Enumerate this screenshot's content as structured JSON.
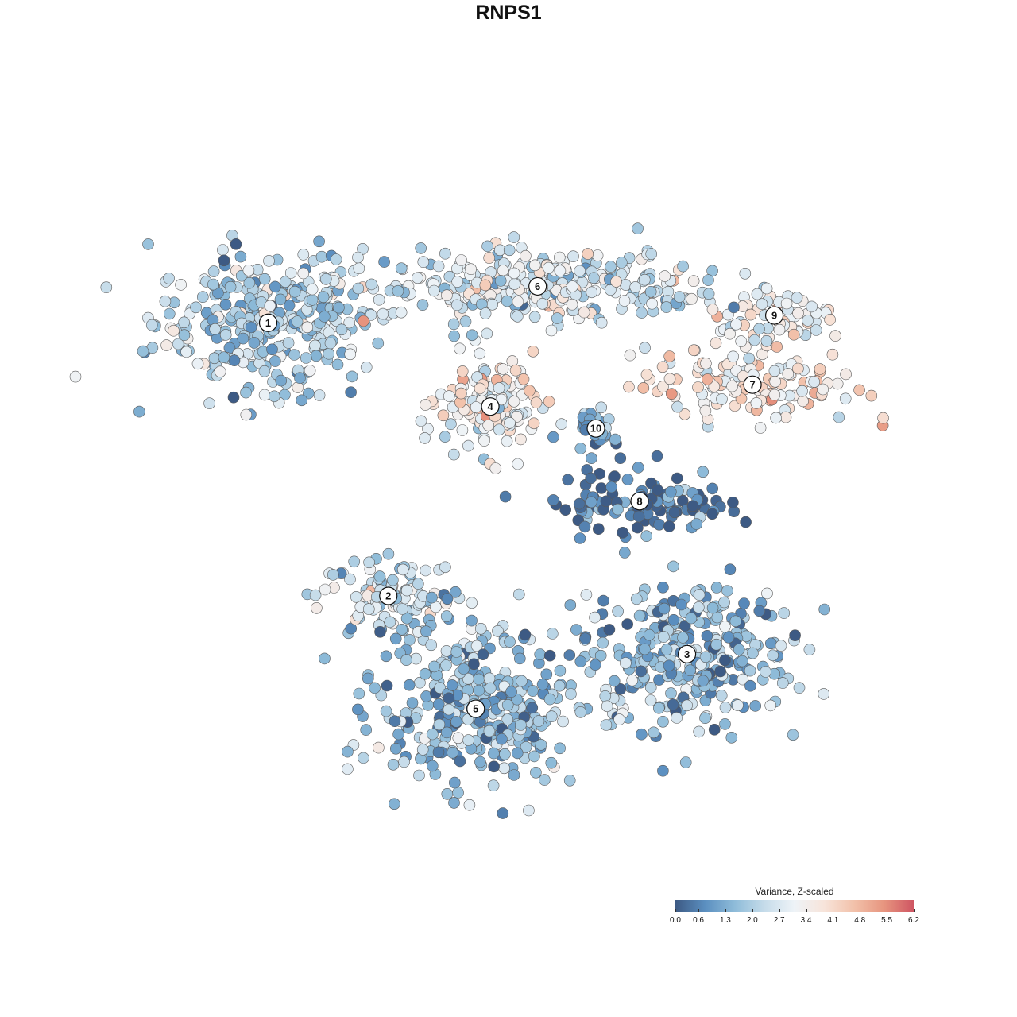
{
  "chart_data": {
    "type": "scatter",
    "title": "RNPS1",
    "legend": {
      "title": "Variance, Z-scaled",
      "ticks": [
        0.0,
        0.6,
        1.3,
        2.0,
        2.7,
        3.4,
        4.1,
        4.8,
        5.5,
        6.2
      ],
      "tick_labels": [
        "0.0",
        "0.6",
        "1.3",
        "2.0",
        "2.7",
        "3.4",
        "4.1",
        "4.8",
        "5.5",
        "6.2"
      ],
      "range": [
        0,
        6.2
      ],
      "placement": "bottom-right",
      "colors": [
        "#3d5a84",
        "#5b8fc0",
        "#8fbcd9",
        "#c6dcea",
        "#eef3f7",
        "#f7e4da",
        "#f2c1aa",
        "#e7957f",
        "#cf5562"
      ]
    },
    "axes_visible": false,
    "grid": false,
    "clusters": [
      {
        "label": "1",
        "x": -6.6,
        "y": 5.1,
        "spread_x": 2.6,
        "spread_y": 1.6,
        "mean_value": 2.0
      },
      {
        "label": "2",
        "x": -3.3,
        "y": -2.4,
        "spread_x": 1.6,
        "spread_y": 0.9,
        "mean_value": 2.3
      },
      {
        "label": "3",
        "x": 4.9,
        "y": -4.0,
        "spread_x": 2.4,
        "spread_y": 1.7,
        "mean_value": 1.4
      },
      {
        "label": "4",
        "x": -0.5,
        "y": 2.8,
        "spread_x": 1.2,
        "spread_y": 1.1,
        "mean_value": 3.3
      },
      {
        "label": "5",
        "x": -0.9,
        "y": -5.5,
        "spread_x": 2.3,
        "spread_y": 1.8,
        "mean_value": 1.5
      },
      {
        "label": "6",
        "x": 0.8,
        "y": 6.1,
        "spread_x": 3.8,
        "spread_y": 0.8,
        "mean_value": 2.6
      },
      {
        "label": "7",
        "x": 6.7,
        "y": 3.4,
        "spread_x": 2.5,
        "spread_y": 0.9,
        "mean_value": 3.6
      },
      {
        "label": "8",
        "x": 3.6,
        "y": 0.2,
        "spread_x": 2.0,
        "spread_y": 0.8,
        "mean_value": 0.5
      },
      {
        "label": "9",
        "x": 7.3,
        "y": 5.3,
        "spread_x": 1.6,
        "spread_y": 0.6,
        "mean_value": 3.0
      },
      {
        "label": "10",
        "x": 2.4,
        "y": 2.2,
        "spread_x": 0.4,
        "spread_y": 0.5,
        "mean_value": 1.0
      }
    ],
    "xlim": [
      -12,
      12
    ],
    "ylim": [
      -12,
      12
    ]
  }
}
